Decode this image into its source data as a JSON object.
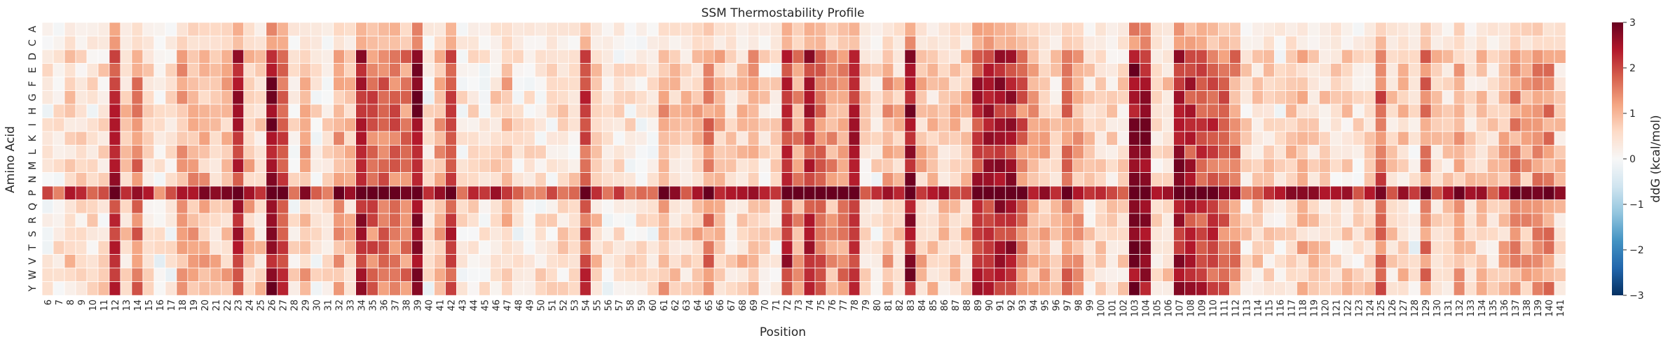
{
  "chart_data": {
    "type": "heatmap",
    "title": "SSM Thermostability Profile",
    "xlabel": "Position",
    "ylabel": "Amino Acid",
    "colorbar_label": "ddG (kcal/mol)",
    "colormap": "RdBu_r",
    "vmin": -3,
    "vmax": 3,
    "colorbar_ticks": [
      "3",
      "2",
      "1",
      "0",
      "−1",
      "−2",
      "−3"
    ],
    "positions_start": 6,
    "positions_end": 141,
    "amino_acids": [
      "A",
      "C",
      "D",
      "E",
      "F",
      "G",
      "H",
      "I",
      "K",
      "L",
      "M",
      "N",
      "P",
      "Q",
      "R",
      "S",
      "T",
      "V",
      "W",
      "Y"
    ],
    "position_profile": {
      "6": 0.1,
      "7": 0.2,
      "8": 0.6,
      "9": 0.5,
      "10": 0.3,
      "11": 0.4,
      "12": 2.2,
      "13": 0.6,
      "14": 1.4,
      "15": 0.5,
      "16": 0.1,
      "17": 0.2,
      "18": 1.0,
      "19": 1.1,
      "20": 0.9,
      "21": 0.7,
      "22": 0.8,
      "23": 2.2,
      "24": 0.9,
      "25": 0.6,
      "26": 2.6,
      "27": 1.8,
      "28": 0.3,
      "29": 0.9,
      "30": 0.3,
      "31": 0.3,
      "32": 1.1,
      "33": 0.7,
      "34": 2.3,
      "35": 1.6,
      "36": 1.5,
      "37": 1.6,
      "38": 1.4,
      "39": 2.6,
      "40": 0.2,
      "41": 1.1,
      "42": 2.0,
      "43": 0.3,
      "44": 0.4,
      "45": 0.3,
      "46": 0.5,
      "47": 0.8,
      "48": 0.2,
      "49": 0.3,
      "50": 0.3,
      "51": 0.3,
      "52": 0.4,
      "53": 0.4,
      "54": 1.9,
      "55": 0.6,
      "56": 0.2,
      "57": 0.3,
      "58": 0.3,
      "59": 0.2,
      "60": 0.2,
      "61": 1.0,
      "62": 0.6,
      "63": 0.6,
      "64": 0.8,
      "65": 1.4,
      "66": 0.8,
      "67": 0.5,
      "68": 0.7,
      "69": 1.0,
      "70": 0.4,
      "71": 0.3,
      "72": 2.2,
      "73": 1.2,
      "74": 2.2,
      "75": 1.6,
      "76": 1.1,
      "77": 1.3,
      "78": 2.1,
      "79": 0.5,
      "80": 0.3,
      "81": 1.0,
      "82": 0.7,
      "83": 2.5,
      "84": 0.8,
      "85": 0.6,
      "86": 0.6,
      "87": 0.7,
      "88": 0.7,
      "89": 2.2,
      "90": 2.2,
      "91": 2.3,
      "92": 2.3,
      "93": 1.6,
      "94": 1.1,
      "95": 0.8,
      "96": 0.5,
      "97": 1.5,
      "98": 1.0,
      "99": 0.5,
      "100": 0.6,
      "101": 0.4,
      "102": 0.5,
      "103": 2.7,
      "104": 2.5,
      "105": 0.5,
      "106": 0.6,
      "107": 2.4,
      "108": 2.1,
      "109": 2.0,
      "110": 1.9,
      "111": 1.5,
      "112": 1.3,
      "113": 0.4,
      "114": 0.5,
      "115": 0.5,
      "116": 0.3,
      "117": 0.7,
      "118": 0.8,
      "119": 0.6,
      "120": 0.5,
      "121": 0.4,
      "122": 0.5,
      "123": 0.3,
      "124": 0.5,
      "125": 1.6,
      "126": 0.5,
      "127": 0.6,
      "128": 0.1,
      "129": 1.4,
      "130": 0.6,
      "131": 0.5,
      "132": 1.0,
      "133": 0.5,
      "134": 0.6,
      "135": 0.5,
      "136": 0.8,
      "137": 1.3,
      "138": 1.0,
      "139": 1.4,
      "140": 1.3,
      "141": 0.6
    },
    "proline_row_boost": 1.6,
    "cell_variation": 0.5,
    "colorbar_stops": [
      [
        0.0,
        "#053061"
      ],
      [
        0.1,
        "#2166ac"
      ],
      [
        0.2,
        "#4393c3"
      ],
      [
        0.3,
        "#92c5de"
      ],
      [
        0.4,
        "#d1e5f0"
      ],
      [
        0.5,
        "#f7f7f7"
      ],
      [
        0.6,
        "#fddbc7"
      ],
      [
        0.7,
        "#f4a582"
      ],
      [
        0.8,
        "#d6604d"
      ],
      [
        0.9,
        "#b2182b"
      ],
      [
        1.0,
        "#67001f"
      ]
    ]
  }
}
